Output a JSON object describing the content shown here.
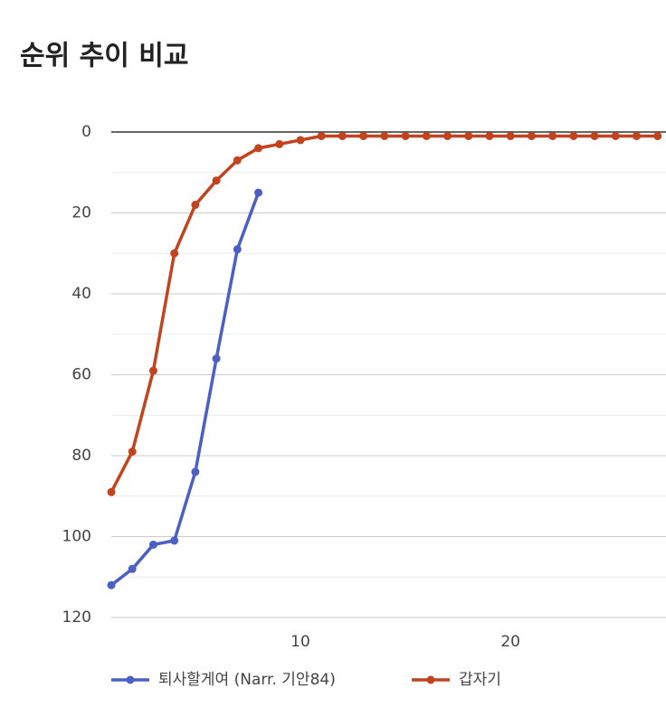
{
  "chart_data": {
    "type": "line",
    "title": "순위 추이 비교",
    "x": [
      1,
      2,
      3,
      4,
      5,
      6,
      7,
      8,
      9,
      10,
      11,
      12,
      13,
      14,
      15,
      16,
      17,
      18,
      19,
      20,
      21,
      22,
      23,
      24,
      25,
      26,
      27
    ],
    "xlim": [
      1,
      27.4
    ],
    "xticks": [
      10,
      20
    ],
    "ylim": [
      0,
      120
    ],
    "yticks": [
      0,
      20,
      40,
      60,
      80,
      100,
      120
    ],
    "yminor": [
      10,
      30,
      50,
      70,
      90,
      110
    ],
    "y_reversed": true,
    "grid": true,
    "legend": "bottom",
    "series": [
      {
        "name": "퇴사할게여 (Narr. 기안84)",
        "color": "#4c5fc4",
        "values": [
          112,
          108,
          102,
          101,
          84,
          56,
          29,
          15,
          null,
          null,
          null,
          null,
          null,
          null,
          null,
          null,
          null,
          null,
          null,
          null,
          null,
          null,
          null,
          null,
          null,
          null,
          null
        ]
      },
      {
        "name": "갑자기",
        "color": "#c1441f",
        "values": [
          89,
          79,
          59,
          30,
          18,
          12,
          7,
          4,
          3,
          2,
          1,
          1,
          1,
          1,
          1,
          1,
          1,
          1,
          1,
          1,
          1,
          1,
          1,
          1,
          1,
          1,
          1
        ]
      }
    ]
  }
}
